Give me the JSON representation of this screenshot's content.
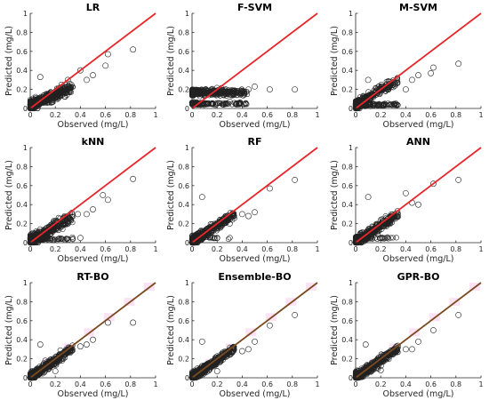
{
  "chart_data": [
    {
      "type": "scatter",
      "title": "LR",
      "xlabel": "Observed (mg/L)",
      "ylabel": "Predicted (mg/L)",
      "xlim": [
        0,
        1
      ],
      "ylim": [
        0,
        1
      ],
      "xticks": [
        "0",
        "0.2",
        "0.4",
        "0.6",
        "0.8",
        "1"
      ],
      "yticks": [
        "0",
        "0.2",
        "0.4",
        "0.6",
        "0.8",
        "1"
      ],
      "reference_line_color": "#e8262a",
      "pattern": "lr",
      "points": [
        [
          0.82,
          0.62
        ],
        [
          0.62,
          0.57
        ],
        [
          0.6,
          0.45
        ],
        [
          0.5,
          0.35
        ],
        [
          0.45,
          0.3
        ],
        [
          0.4,
          0.4
        ],
        [
          0.3,
          0.3
        ],
        [
          0.25,
          0.25
        ],
        [
          0.08,
          0.33
        ]
      ]
    },
    {
      "type": "scatter",
      "title": "F-SVM",
      "xlabel": "Observed (mg/L)",
      "ylabel": "Predicted (mg/L)",
      "xlim": [
        0,
        1
      ],
      "ylim": [
        0,
        1
      ],
      "xticks": [
        "0",
        "0.2",
        "0.4",
        "0.6",
        "0.8",
        "1"
      ],
      "yticks": [
        "0",
        "0.2",
        "0.4",
        "0.6",
        "0.8",
        "1"
      ],
      "reference_line_color": "#e8262a",
      "pattern": "fsvm",
      "points": [
        [
          0.82,
          0.2
        ],
        [
          0.62,
          0.2
        ],
        [
          0.5,
          0.23
        ],
        [
          0.45,
          0.2
        ],
        [
          0.38,
          0.06
        ],
        [
          0.3,
          0.07
        ]
      ]
    },
    {
      "type": "scatter",
      "title": "M-SVM",
      "xlabel": "Observed (mg/L)",
      "ylabel": "Predicted (mg/L)",
      "xlim": [
        0,
        1
      ],
      "ylim": [
        0,
        1
      ],
      "xticks": [
        "0",
        "0.2",
        "0.4",
        "0.6",
        "0.8",
        "1"
      ],
      "yticks": [
        "0",
        "0.2",
        "0.4",
        "0.6",
        "0.8",
        "1"
      ],
      "reference_line_color": "#e8262a",
      "pattern": "msvm",
      "points": [
        [
          0.82,
          0.47
        ],
        [
          0.62,
          0.43
        ],
        [
          0.6,
          0.37
        ],
        [
          0.5,
          0.35
        ],
        [
          0.45,
          0.3
        ],
        [
          0.4,
          0.2
        ],
        [
          0.3,
          0.25
        ],
        [
          0.1,
          0.3
        ]
      ]
    },
    {
      "type": "scatter",
      "title": "kNN",
      "xlabel": "Observed (mg/L)",
      "ylabel": "Predicted (mg/L)",
      "xlim": [
        0,
        1
      ],
      "ylim": [
        0,
        1
      ],
      "xticks": [
        "0",
        "0.2",
        "0.4",
        "0.6",
        "0.8",
        "1"
      ],
      "yticks": [
        "0",
        "0.2",
        "0.4",
        "0.6",
        "0.8",
        "1"
      ],
      "reference_line_color": "#e8262a",
      "pattern": "knn",
      "points": [
        [
          0.82,
          0.67
        ],
        [
          0.62,
          0.45
        ],
        [
          0.58,
          0.5
        ],
        [
          0.5,
          0.35
        ],
        [
          0.45,
          0.3
        ],
        [
          0.38,
          0.3
        ],
        [
          0.4,
          0.05
        ],
        [
          0.3,
          0.2
        ]
      ]
    },
    {
      "type": "scatter",
      "title": "RF",
      "xlabel": "Observed (mg/L)",
      "ylabel": "Predicted (mg/L)",
      "xlim": [
        0,
        1
      ],
      "ylim": [
        0,
        1
      ],
      "xticks": [
        "0",
        "0.2",
        "0.4",
        "0.6",
        "0.8",
        "1"
      ],
      "yticks": [
        "0",
        "0.2",
        "0.4",
        "0.6",
        "0.8",
        "1"
      ],
      "reference_line_color": "#e8262a",
      "pattern": "rf",
      "points": [
        [
          0.82,
          0.66
        ],
        [
          0.62,
          0.57
        ],
        [
          0.5,
          0.32
        ],
        [
          0.45,
          0.28
        ],
        [
          0.4,
          0.3
        ],
        [
          0.3,
          0.2
        ],
        [
          0.08,
          0.48
        ],
        [
          0.2,
          0.05
        ]
      ]
    },
    {
      "type": "scatter",
      "title": "ANN",
      "xlabel": "Observed (mg/L)",
      "ylabel": "Predicted (mg/L)",
      "xlim": [
        0,
        1
      ],
      "ylim": [
        0,
        1
      ],
      "xticks": [
        "0",
        "0.2",
        "0.4",
        "0.6",
        "0.8",
        "1"
      ],
      "yticks": [
        "0",
        "0.2",
        "0.4",
        "0.6",
        "0.8",
        "1"
      ],
      "reference_line_color": "#e8262a",
      "pattern": "ann",
      "points": [
        [
          0.82,
          0.66
        ],
        [
          0.62,
          0.62
        ],
        [
          0.5,
          0.4
        ],
        [
          0.45,
          0.42
        ],
        [
          0.4,
          0.52
        ],
        [
          0.3,
          0.25
        ],
        [
          0.1,
          0.48
        ],
        [
          0.2,
          0.05
        ]
      ]
    },
    {
      "type": "scatter",
      "title": "RT-BO",
      "xlabel": "Observed (mg/L)",
      "ylabel": "Predicted (mg/L)",
      "xlim": [
        0,
        1
      ],
      "ylim": [
        0,
        1
      ],
      "xticks": [
        "0",
        "0.2",
        "0.4",
        "0.6",
        "0.8",
        "1"
      ],
      "yticks": [
        "0",
        "0.2",
        "0.4",
        "0.6",
        "0.8",
        "1"
      ],
      "reference_line_color": "#7a4a1e",
      "pattern": "rtbo",
      "points": [
        [
          0.82,
          0.58
        ],
        [
          0.62,
          0.58
        ],
        [
          0.5,
          0.4
        ],
        [
          0.45,
          0.35
        ],
        [
          0.4,
          0.33
        ],
        [
          0.3,
          0.28
        ],
        [
          0.08,
          0.35
        ],
        [
          0.2,
          0.07
        ]
      ]
    },
    {
      "type": "scatter",
      "title": "Ensemble-BO",
      "xlabel": "Observed (mg/L)",
      "ylabel": "Predicted (mg/L)",
      "xlim": [
        0,
        1
      ],
      "ylim": [
        0,
        1
      ],
      "xticks": [
        "0",
        "0.2",
        "0.4",
        "0.6",
        "0.8",
        "1"
      ],
      "yticks": [
        "0",
        "0.2",
        "0.4",
        "0.6",
        "0.8",
        "1"
      ],
      "reference_line_color": "#7a4a1e",
      "pattern": "ensbo",
      "points": [
        [
          0.82,
          0.66
        ],
        [
          0.62,
          0.55
        ],
        [
          0.5,
          0.38
        ],
        [
          0.45,
          0.3
        ],
        [
          0.4,
          0.28
        ],
        [
          0.08,
          0.38
        ],
        [
          0.2,
          0.07
        ]
      ]
    },
    {
      "type": "scatter",
      "title": "GPR-BO",
      "xlabel": "Observed (mg/L)",
      "ylabel": "Predicted (mg/L)",
      "xlim": [
        0,
        1
      ],
      "ylim": [
        0,
        1
      ],
      "xticks": [
        "0",
        "0.2",
        "0.4",
        "0.6",
        "0.8",
        "1"
      ],
      "yticks": [
        "0",
        "0.2",
        "0.4",
        "0.6",
        "0.8",
        "1"
      ],
      "reference_line_color": "#7a4a1e",
      "pattern": "gprbo",
      "points": [
        [
          0.82,
          0.66
        ],
        [
          0.62,
          0.5
        ],
        [
          0.5,
          0.38
        ],
        [
          0.45,
          0.3
        ],
        [
          0.4,
          0.3
        ],
        [
          0.08,
          0.35
        ],
        [
          0.2,
          0.08
        ]
      ]
    }
  ]
}
